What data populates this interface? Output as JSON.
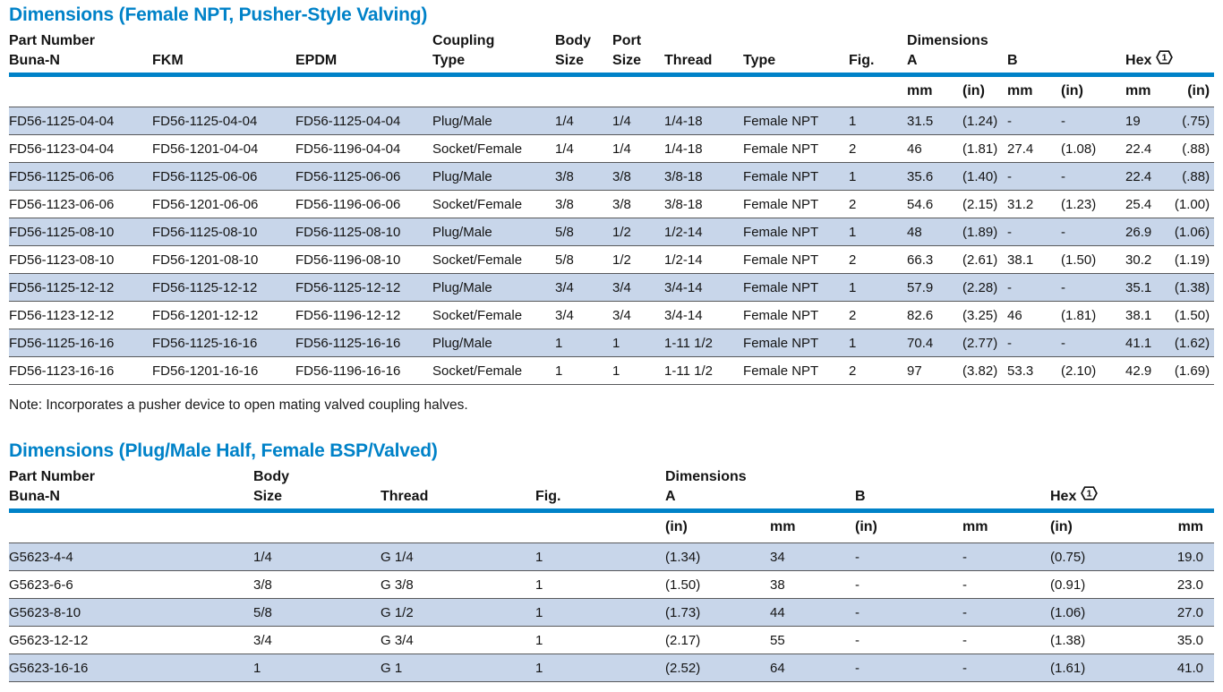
{
  "colors": {
    "accent": "#0082C8",
    "row_stripe": "#C8D6EA",
    "row_border": "#58595B"
  },
  "shared": {
    "part_number": "Part Number",
    "dimensions": "Dimensions",
    "hex_label": "Hex",
    "hex_ref": "1",
    "mm": "mm",
    "in": "(in)"
  },
  "table1": {
    "title": "Dimensions (Female NPT, Pusher-Style Valving)",
    "headers": {
      "buna": "Buna-N",
      "fkm": "FKM",
      "epdm": "EPDM",
      "coupling": "Coupling",
      "coupling_type": "Type",
      "body": "Body",
      "body_size": "Size",
      "port": "Port",
      "port_size": "Size",
      "thread": "Thread",
      "type": "Type",
      "fig": "Fig.",
      "a": "A",
      "b": "B"
    },
    "rows": [
      [
        "FD56-1125-04-04",
        "FD56-1125-04-04",
        "FD56-1125-04-04",
        "Plug/Male",
        "1/4",
        "1/4",
        "1/4-18",
        "Female NPT",
        "1",
        "31.5",
        "(1.24)",
        "-",
        "-",
        "19",
        "(.75)"
      ],
      [
        "FD56-1123-04-04",
        "FD56-1201-04-04",
        "FD56-1196-04-04",
        "Socket/Female",
        "1/4",
        "1/4",
        "1/4-18",
        "Female NPT",
        "2",
        "46",
        "(1.81)",
        "27.4",
        "(1.08)",
        "22.4",
        "(.88)"
      ],
      [
        "FD56-1125-06-06",
        "FD56-1125-06-06",
        "FD56-1125-06-06",
        "Plug/Male",
        "3/8",
        "3/8",
        "3/8-18",
        "Female NPT",
        "1",
        "35.6",
        "(1.40)",
        "-",
        "-",
        "22.4",
        "(.88)"
      ],
      [
        "FD56-1123-06-06",
        "FD56-1201-06-06",
        "FD56-1196-06-06",
        "Socket/Female",
        "3/8",
        "3/8",
        "3/8-18",
        "Female NPT",
        "2",
        "54.6",
        "(2.15)",
        "31.2",
        "(1.23)",
        "25.4",
        "(1.00)"
      ],
      [
        "FD56-1125-08-10",
        "FD56-1125-08-10",
        "FD56-1125-08-10",
        "Plug/Male",
        "5/8",
        "1/2",
        "1/2-14",
        "Female NPT",
        "1",
        "48",
        "(1.89)",
        "-",
        "-",
        "26.9",
        "(1.06)"
      ],
      [
        "FD56-1123-08-10",
        "FD56-1201-08-10",
        "FD56-1196-08-10",
        "Socket/Female",
        "5/8",
        "1/2",
        "1/2-14",
        "Female NPT",
        "2",
        "66.3",
        "(2.61)",
        "38.1",
        "(1.50)",
        "30.2",
        "(1.19)"
      ],
      [
        "FD56-1125-12-12",
        "FD56-1125-12-12",
        "FD56-1125-12-12",
        "Plug/Male",
        "3/4",
        "3/4",
        "3/4-14",
        "Female NPT",
        "1",
        "57.9",
        "(2.28)",
        "-",
        "-",
        "35.1",
        "(1.38)"
      ],
      [
        "FD56-1123-12-12",
        "FD56-1201-12-12",
        "FD56-1196-12-12",
        "Socket/Female",
        "3/4",
        "3/4",
        "3/4-14",
        "Female NPT",
        "2",
        "82.6",
        "(3.25)",
        "46",
        "(1.81)",
        "38.1",
        "(1.50)"
      ],
      [
        "FD56-1125-16-16",
        "FD56-1125-16-16",
        "FD56-1125-16-16",
        "Plug/Male",
        "1",
        "1",
        "1-11 1/2",
        "Female NPT",
        "1",
        "70.4",
        "(2.77)",
        "-",
        "-",
        "41.1",
        "(1.62)"
      ],
      [
        "FD56-1123-16-16",
        "FD56-1201-16-16",
        "FD56-1196-16-16",
        "Socket/Female",
        "1",
        "1",
        "1-11 1/2",
        "Female NPT",
        "2",
        "97",
        "(3.82)",
        "53.3",
        "(2.10)",
        "42.9",
        "(1.69)"
      ]
    ],
    "note": "Note: Incorporates a pusher device to open mating valved coupling halves."
  },
  "table2": {
    "title": "Dimensions (Plug/Male Half, Female BSP/Valved)",
    "headers": {
      "buna": "Buna-N",
      "body": "Body",
      "body_size": "Size",
      "thread": "Thread",
      "fig": "Fig.",
      "a": "A",
      "b": "B"
    },
    "rows": [
      [
        "G5623-4-4",
        "1/4",
        "G 1/4",
        "1",
        "(1.34)",
        "34",
        "-",
        "-",
        "(0.75)",
        "19.0"
      ],
      [
        "G5623-6-6",
        "3/8",
        "G 3/8",
        "1",
        "(1.50)",
        "38",
        "-",
        "-",
        "(0.91)",
        "23.0"
      ],
      [
        "G5623-8-10",
        "5/8",
        "G 1/2",
        "1",
        "(1.73)",
        "44",
        "-",
        "-",
        "(1.06)",
        "27.0"
      ],
      [
        "G5623-12-12",
        "3/4",
        "G 3/4",
        "1",
        "(2.17)",
        "55",
        "-",
        "-",
        "(1.38)",
        "35.0"
      ],
      [
        "G5623-16-16",
        "1",
        "G 1",
        "1",
        "(2.52)",
        "64",
        "-",
        "-",
        "(1.61)",
        "41.0"
      ]
    ]
  }
}
